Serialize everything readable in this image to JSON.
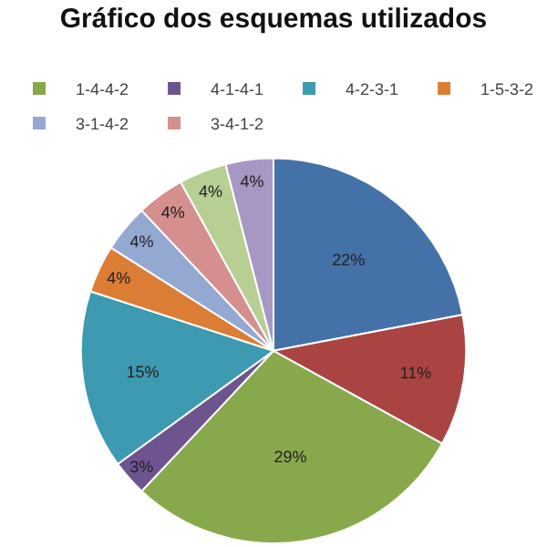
{
  "chart_data": {
    "type": "pie",
    "title": "Gráfico dos esquemas utilizados",
    "categories": [
      null,
      null,
      "1-4-4-2",
      "4-1-4-1",
      "4-2-3-1",
      "1-5-3-2",
      "3-1-4-2",
      "3-4-1-2",
      null,
      null
    ],
    "values": [
      22,
      11,
      29,
      3,
      15,
      4,
      4,
      4,
      4,
      4
    ],
    "value_labels": [
      "22%",
      "11%",
      "29%",
      "3%",
      "15%",
      "4%",
      "4%",
      "4%",
      "4%",
      "4%"
    ],
    "colors": [
      "#4472a8",
      "#a94442",
      "#88a84c",
      "#6e548f",
      "#3d9ab0",
      "#dc7d35",
      "#93a9d2",
      "#d48f8e",
      "#b7cf93",
      "#a897c2"
    ],
    "legend": "top"
  }
}
